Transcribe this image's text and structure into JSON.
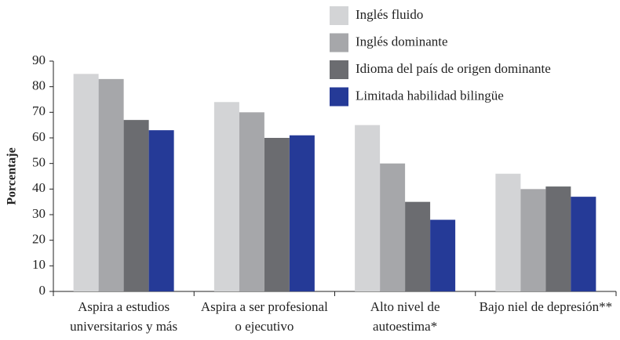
{
  "chart_data": {
    "type": "bar",
    "y_label": "Porcentaje",
    "categories": [
      [
        "Aspira a estudios",
        "universitarios y más"
      ],
      [
        "Aspira a ser profesional",
        "o ejecutivo"
      ],
      [
        "Alto nivel de",
        "autoestima*"
      ],
      [
        "Bajo niel de depresión**"
      ]
    ],
    "series": [
      {
        "name": "Inglés fluido",
        "color": "#d3d4d6",
        "values": [
          85,
          74,
          65,
          46
        ]
      },
      {
        "name": "Inglés dominante",
        "color": "#a6a7aa",
        "values": [
          83,
          70,
          50,
          40
        ]
      },
      {
        "name": "Idioma del país de origen dominante",
        "color": "#6b6c70",
        "values": [
          67,
          60,
          35,
          41
        ]
      },
      {
        "name": "Limitada habilidad bilingüe",
        "color": "#253a97",
        "values": [
          63,
          61,
          28,
          37
        ]
      }
    ],
    "ylim": [
      0,
      90
    ],
    "yticks": [
      0,
      10,
      20,
      30,
      40,
      50,
      60,
      70,
      80,
      90
    ],
    "legend": "top-right"
  }
}
